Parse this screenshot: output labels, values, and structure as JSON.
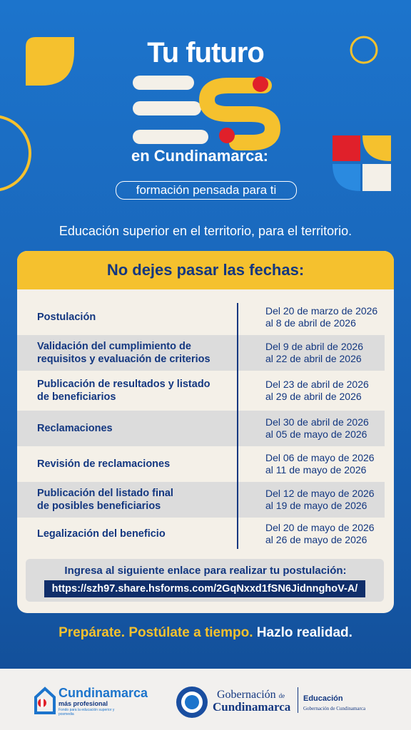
{
  "header": {
    "title_top": "Tu futuro",
    "title_bottom": "en Cundinamarca:",
    "pill": "formación pensada para ti",
    "subtitle": "Educación superior en el territorio, para el territorio."
  },
  "table": {
    "title": "No dejes pasar las fechas:",
    "rows": [
      {
        "label": [
          "Postulación"
        ],
        "dates": [
          "Del 20 de marzo de 2026",
          "al 8 de abril de 2026"
        ]
      },
      {
        "label": [
          "Validación del cumplimiento de",
          "requisitos y evaluación de criterios"
        ],
        "dates": [
          "Del 9 de abril de 2026",
          "al 22 de abril de 2026"
        ]
      },
      {
        "label": [
          "Publicación de resultados y listado",
          "de beneficiarios"
        ],
        "dates": [
          "Del 23 de abril de 2026",
          "al 29 de abril de 2026"
        ]
      },
      {
        "label": [
          "Reclamaciones"
        ],
        "dates": [
          "Del 30 de abril de 2026",
          "al 05 de mayo de 2026"
        ]
      },
      {
        "label": [
          "Revisión de reclamaciones"
        ],
        "dates": [
          "Del 06 de mayo de 2026",
          "al 11 de mayo de 2026"
        ]
      },
      {
        "label": [
          "Publicación del listado final",
          "de posibles beneficiarios"
        ],
        "dates": [
          "Del 12 de mayo de 2026",
          "al 19 de mayo de 2026"
        ]
      },
      {
        "label": [
          "Legalización del beneficio"
        ],
        "dates": [
          "Del 20 de mayo de 2026",
          "al 26 de mayo de 2026"
        ]
      }
    ],
    "link_prompt": "Ingresa al siguiente enlace para realizar tu postulación:",
    "link": "https://szh97.share.hsforms.com/2GqNxxd1fSN6JidnnghoV-A/"
  },
  "tagline": [
    "Prepárate.",
    "Postúlate a tiempo.",
    "Hazlo realidad."
  ],
  "footer": {
    "brand": "Cundinamarca",
    "brand_sub": "más profesional",
    "brand_note": "Fondo para la educación superior y posmedia",
    "gov_top": "Gobernación",
    "gov_de": "de",
    "gov_bottom": "Cundinamarca",
    "edu": "Educación",
    "edu_sub": "Gobernación de Cundinamarca"
  }
}
